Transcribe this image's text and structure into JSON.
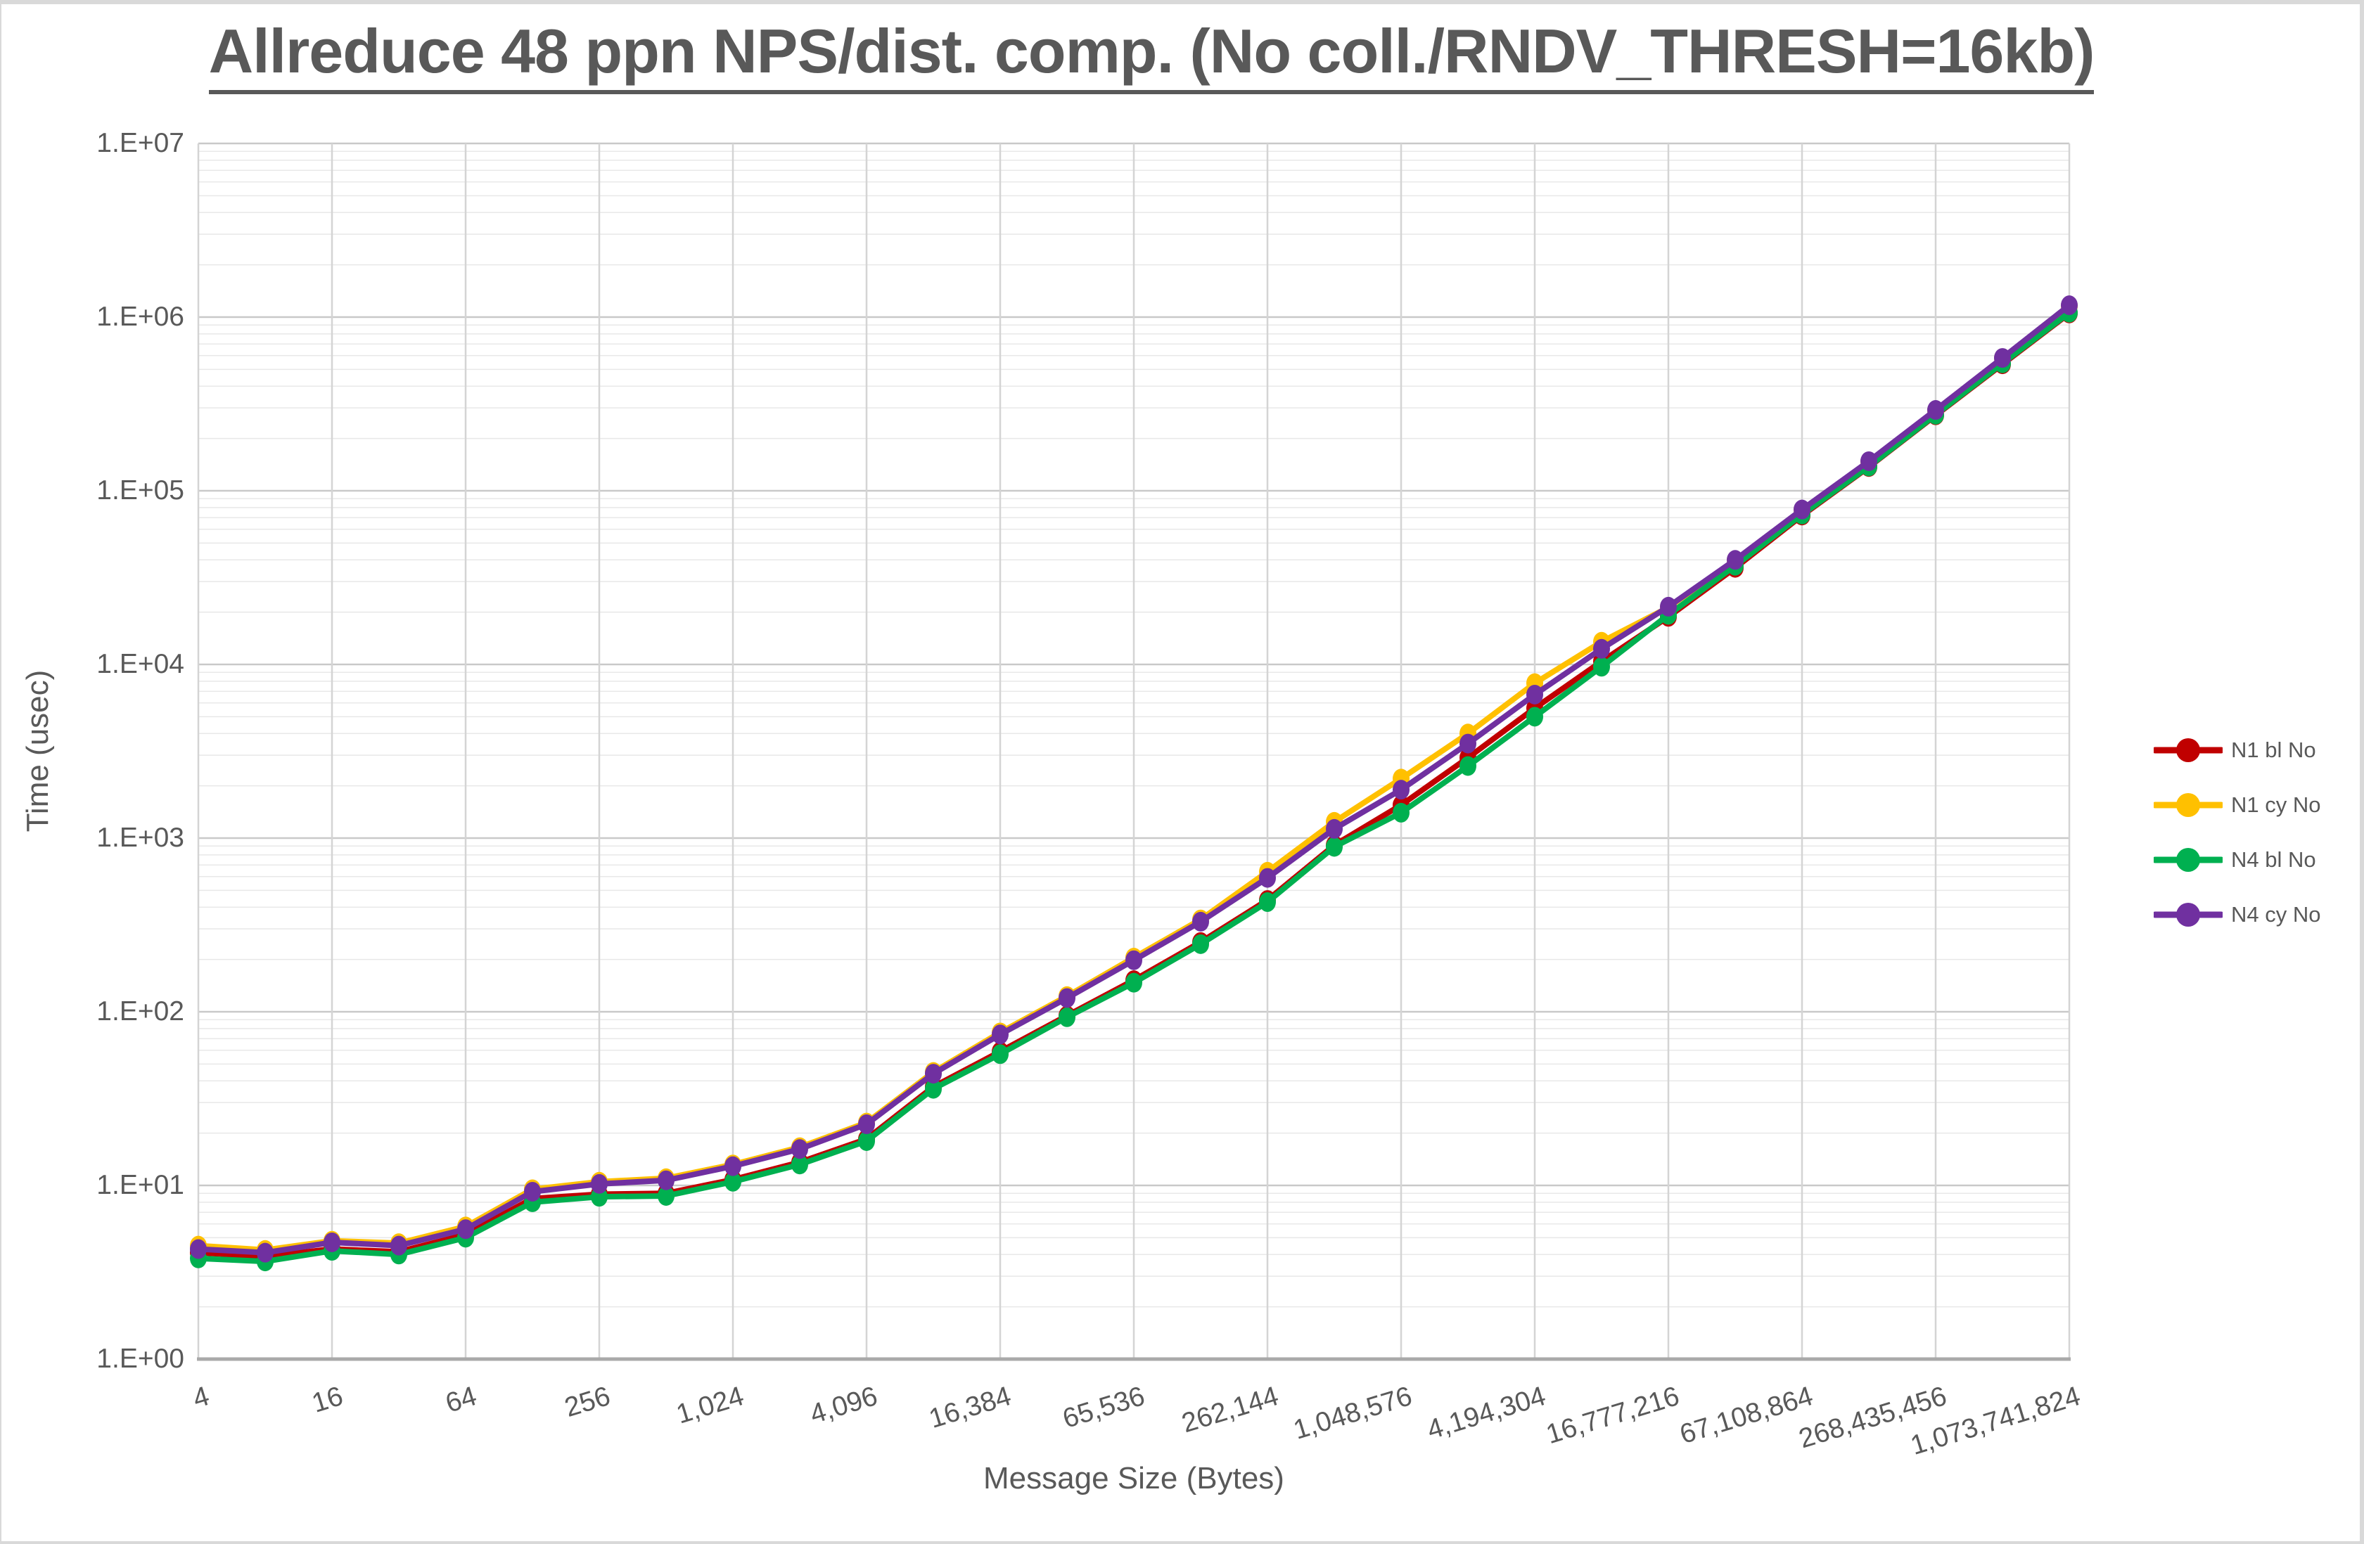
{
  "title": "Allreduce 48 ppn NPS/dist. comp. (No coll./RNDV_THRESH=16kb)",
  "axes": {
    "y": {
      "label": "Time (usec)",
      "ticks": [
        "1.E+00",
        "1.E+01",
        "1.E+02",
        "1.E+03",
        "1.E+04",
        "1.E+05",
        "1.E+06",
        "1.E+07"
      ]
    },
    "x": {
      "label": "Message Size (Bytes)",
      "ticks": [
        "4",
        "16",
        "64",
        "256",
        "1,024",
        "4,096",
        "16,384",
        "65,536",
        "262,144",
        "1,048,576",
        "4,194,304",
        "16,777,216",
        "67,108,864",
        "268,435,456",
        "1,073,741,824"
      ]
    }
  },
  "colors": {
    "text": "#595959",
    "grid_major": "#c9c9c9",
    "grid_minor": "#e8e8e8",
    "grid_vertical": "#d4d4d4",
    "axis_line": "#a9a9a9"
  },
  "chart_data": {
    "type": "line",
    "title": "Allreduce 48 ppn NPS/dist. comp. (No coll./RNDV_THRESH=16kb)",
    "xlabel": "Message Size (Bytes)",
    "ylabel": "Time (usec)",
    "x_scale": "log2",
    "y_scale": "log10",
    "ylim": [
      1,
      10000000
    ],
    "xlim": [
      4,
      1073741824
    ],
    "grid": true,
    "legend_position": "right",
    "x": [
      4,
      8,
      16,
      32,
      64,
      128,
      256,
      512,
      1024,
      2048,
      4096,
      8192,
      16384,
      32768,
      65536,
      131072,
      262144,
      524288,
      1048576,
      2097152,
      4194304,
      8388608,
      16777216,
      33554432,
      67108864,
      134217728,
      268435456,
      536870912,
      1073741824
    ],
    "series": [
      {
        "name": "N1 bl No",
        "color": "#C00000",
        "values": [
          4.1,
          3.9,
          4.3,
          4.15,
          5.2,
          8.4,
          8.9,
          9.0,
          10.8,
          13.6,
          18.5,
          37,
          59,
          95,
          152,
          252,
          440,
          910,
          1550,
          2900,
          5600,
          10400,
          18800,
          36000,
          72000,
          137000,
          272000,
          535000,
          1050000
        ]
      },
      {
        "name": "N1 cy No",
        "color": "#FFC000",
        "values": [
          4.5,
          4.25,
          4.8,
          4.65,
          5.8,
          9.5,
          10.5,
          11.0,
          13.2,
          16.6,
          23,
          45,
          76,
          123,
          205,
          340,
          640,
          1240,
          2200,
          4000,
          7800,
          13500,
          21300,
          39800,
          77500,
          147000,
          290000,
          580000,
          1160000
        ]
      },
      {
        "name": "N4 bl No",
        "color": "#00B050",
        "values": [
          3.8,
          3.65,
          4.2,
          4.0,
          5.0,
          8.0,
          8.6,
          8.7,
          10.5,
          13.2,
          18.0,
          36,
          57,
          93,
          147,
          245,
          428,
          890,
          1400,
          2600,
          5000,
          9700,
          19300,
          37000,
          73000,
          138000,
          274000,
          542000,
          1060000
        ]
      },
      {
        "name": "N4 cy No",
        "color": "#7030A0",
        "values": [
          4.3,
          4.1,
          4.7,
          4.5,
          5.6,
          9.2,
          10.2,
          10.7,
          12.9,
          16.2,
          22.5,
          44,
          74,
          120,
          198,
          330,
          590,
          1130,
          1900,
          3500,
          6700,
          12300,
          21500,
          40000,
          78000,
          148000,
          292000,
          582000,
          1170000
        ]
      }
    ]
  }
}
